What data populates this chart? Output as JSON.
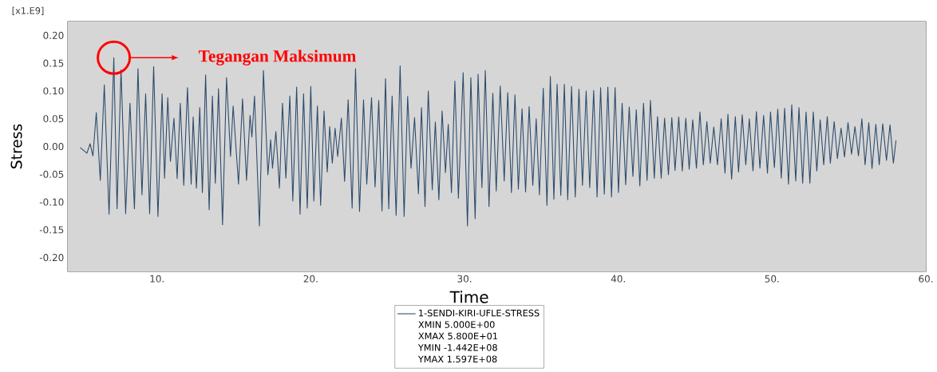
{
  "chart_data": {
    "type": "line",
    "xlabel": "Time",
    "ylabel": "Stress",
    "xlim": [
      4.2,
      60
    ],
    "ylim": [
      -0.225,
      0.225
    ],
    "xticks": [
      {
        "value": 5,
        "label": null
      },
      {
        "value": 10,
        "label": "10."
      },
      {
        "value": 15,
        "label": null
      },
      {
        "value": 20,
        "label": "20."
      },
      {
        "value": 25,
        "label": null
      },
      {
        "value": 30,
        "label": "30."
      },
      {
        "value": 35,
        "label": null
      },
      {
        "value": 40,
        "label": "40."
      },
      {
        "value": 45,
        "label": null
      },
      {
        "value": 50,
        "label": "50."
      },
      {
        "value": 55,
        "label": null
      },
      {
        "value": 60,
        "label": "60."
      }
    ],
    "yticks": [
      {
        "value": -0.2,
        "label": "-0.20"
      },
      {
        "value": -0.175,
        "label": null
      },
      {
        "value": -0.15,
        "label": "-0.15"
      },
      {
        "value": -0.125,
        "label": null
      },
      {
        "value": -0.1,
        "label": "-0.10"
      },
      {
        "value": -0.075,
        "label": null
      },
      {
        "value": -0.05,
        "label": "-0.05"
      },
      {
        "value": -0.025,
        "label": null
      },
      {
        "value": 0,
        "label": "0.00"
      },
      {
        "value": 0.025,
        "label": null
      },
      {
        "value": 0.05,
        "label": "0.05"
      },
      {
        "value": 0.075,
        "label": null
      },
      {
        "value": 0.1,
        "label": "0.10"
      },
      {
        "value": 0.125,
        "label": null
      },
      {
        "value": 0.15,
        "label": "0.15"
      },
      {
        "value": 0.175,
        "label": null
      },
      {
        "value": 0.2,
        "label": "0.20"
      }
    ],
    "legend": "bottom",
    "annotations": [
      "[x1.E9]",
      "Tegangan Maksimum",
      "XMIN 5.000E+00",
      "XMAX 5.800E+01",
      "YMIN -1.442E+08",
      "YMAX 1.597E+08"
    ],
    "x": [
      5.0,
      5.44,
      5.65,
      5.83,
      6.05,
      6.31,
      6.57,
      6.88,
      7.19,
      7.4,
      7.66,
      7.96,
      8.24,
      8.53,
      8.76,
      9.02,
      9.26,
      9.52,
      9.78,
      10.06,
      10.33,
      10.49,
      10.7,
      10.87,
      11.1,
      11.31,
      11.51,
      11.74,
      11.98,
      12.22,
      12.35,
      12.56,
      12.78,
      12.95,
      13.16,
      13.39,
      13.6,
      13.79,
      14.0,
      14.26,
      14.52,
      14.78,
      14.95,
      15.3,
      15.56,
      15.82,
      16.05,
      16.17,
      16.34,
      16.66,
      16.92,
      17.21,
      17.39,
      17.51,
      17.73,
      17.96,
      18.16,
      18.38,
      18.64,
      18.83,
      19.08,
      19.3,
      19.53,
      19.77,
      20.0,
      20.2,
      20.43,
      20.64,
      20.86,
      21.07,
      21.23,
      21.4,
      21.58,
      21.75,
      21.99,
      22.2,
      22.43,
      22.69,
      22.91,
      23.17,
      23.43,
      23.64,
      23.95,
      24.18,
      24.42,
      24.63,
      24.86,
      25.07,
      25.29,
      25.55,
      25.81,
      26.07,
      26.3,
      26.52,
      26.75,
      27.0,
      27.2,
      27.43,
      27.64,
      27.9,
      28.1,
      28.33,
      28.54,
      28.76,
      28.94,
      29.15,
      29.37,
      29.6,
      29.91,
      30.19,
      30.41,
      30.69,
      30.88,
      31.13,
      31.35,
      31.59,
      31.84,
      32.06,
      32.32,
      32.58,
      32.81,
      33.05,
      33.28,
      33.5,
      33.74,
      33.97,
      34.2,
      34.44,
      34.66,
      34.87,
      35.12,
      35.36,
      35.58,
      35.81,
      36.02,
      36.26,
      36.49,
      36.71,
      36.96,
      37.2,
      37.44,
      37.67,
      37.91,
      38.14,
      38.4,
      38.62,
      38.85,
      39.09,
      39.32,
      39.56,
      39.79,
      40.01,
      40.25,
      40.48,
      40.71,
      40.95,
      41.17,
      41.4,
      41.64,
      41.87,
      42.09,
      42.34,
      42.55,
      42.79,
      43.01,
      43.26,
      43.48,
      43.69,
      43.93,
      44.16,
      44.39,
      44.61,
      44.84,
      45.08,
      45.31,
      45.53,
      45.76,
      45.98,
      46.21,
      46.45,
      46.69,
      46.94,
      47.13,
      47.37,
      47.61,
      47.82,
      48.06,
      48.29,
      48.52,
      48.76,
      48.98,
      49.21,
      49.45,
      49.7,
      49.9,
      50.15,
      50.37,
      50.6,
      50.82,
      51.07,
      51.28,
      51.54,
      51.75,
      51.99,
      52.21,
      52.46,
      52.68,
      52.91,
      53.13,
      53.36,
      53.59,
      53.79,
      54.04,
      54.25,
      54.49,
      54.71,
      54.94,
      55.17,
      55.39,
      55.62,
      55.84,
      56.05,
      56.29,
      56.5,
      56.75,
      56.97,
      57.2,
      57.44,
      57.67,
      57.89,
      58.06
    ],
    "series": [
      {
        "name": "1-SENDI-KIRI-UFLE-STRESS",
        "color": "#2b4a6b",
        "values": [
          -0.002,
          -0.012,
          0.005,
          -0.017,
          0.061,
          -0.061,
          0.111,
          -0.122,
          0.16,
          -0.112,
          0.138,
          -0.121,
          0.078,
          -0.112,
          0.14,
          -0.087,
          0.095,
          -0.121,
          0.144,
          -0.126,
          0.095,
          -0.057,
          0.088,
          -0.027,
          0.051,
          -0.058,
          0.078,
          -0.07,
          0.106,
          -0.068,
          0.053,
          -0.075,
          0.07,
          -0.083,
          0.129,
          -0.114,
          0.091,
          -0.066,
          0.104,
          -0.141,
          0.124,
          -0.018,
          0.073,
          -0.068,
          0.086,
          -0.061,
          0.056,
          0.017,
          0.091,
          -0.143,
          0.137,
          -0.051,
          0.012,
          -0.039,
          0.027,
          -0.075,
          0.078,
          -0.057,
          0.091,
          -0.098,
          0.107,
          -0.122,
          0.095,
          -0.111,
          0.108,
          -0.098,
          0.073,
          -0.106,
          0.064,
          -0.046,
          0.036,
          -0.03,
          0.033,
          -0.018,
          0.051,
          -0.063,
          0.084,
          -0.111,
          0.14,
          -0.117,
          0.084,
          -0.068,
          0.088,
          -0.073,
          0.083,
          -0.116,
          0.122,
          -0.112,
          0.091,
          -0.124,
          0.145,
          -0.126,
          0.09,
          -0.039,
          0.052,
          -0.085,
          0.07,
          -0.108,
          0.1,
          -0.078,
          0.044,
          -0.096,
          0.064,
          -0.047,
          0.04,
          -0.083,
          0.118,
          -0.093,
          0.133,
          -0.143,
          0.124,
          -0.13,
          0.13,
          -0.074,
          0.137,
          -0.108,
          0.096,
          -0.08,
          0.109,
          -0.062,
          0.097,
          -0.083,
          0.093,
          -0.077,
          0.068,
          -0.082,
          0.072,
          -0.07,
          0.05,
          -0.087,
          0.105,
          -0.106,
          0.126,
          -0.095,
          0.112,
          -0.088,
          0.112,
          -0.096,
          0.108,
          -0.091,
          0.103,
          -0.07,
          0.1,
          -0.074,
          0.101,
          -0.091,
          0.106,
          -0.086,
          0.107,
          -0.091,
          0.106,
          -0.083,
          0.078,
          -0.069,
          0.071,
          -0.054,
          0.066,
          -0.071,
          0.078,
          -0.061,
          0.083,
          -0.057,
          0.054,
          -0.057,
          0.051,
          -0.051,
          0.052,
          -0.043,
          0.053,
          -0.044,
          0.051,
          -0.041,
          0.048,
          -0.039,
          0.062,
          -0.033,
          0.045,
          -0.03,
          0.035,
          -0.033,
          0.05,
          -0.048,
          0.058,
          -0.059,
          0.054,
          -0.046,
          0.057,
          -0.033,
          0.05,
          -0.044,
          0.063,
          -0.039,
          0.056,
          -0.048,
          0.062,
          -0.038,
          0.067,
          -0.057,
          0.069,
          -0.068,
          0.075,
          -0.062,
          0.07,
          -0.066,
          0.062,
          -0.066,
          0.062,
          -0.044,
          0.048,
          -0.033,
          0.054,
          -0.03,
          0.045,
          -0.022,
          0.033,
          -0.019,
          0.043,
          -0.014,
          0.036,
          -0.017,
          0.05,
          -0.033,
          0.043,
          -0.04,
          0.04,
          -0.033,
          0.041,
          -0.025,
          0.039,
          -0.03,
          0.011
        ]
      }
    ]
  }
}
